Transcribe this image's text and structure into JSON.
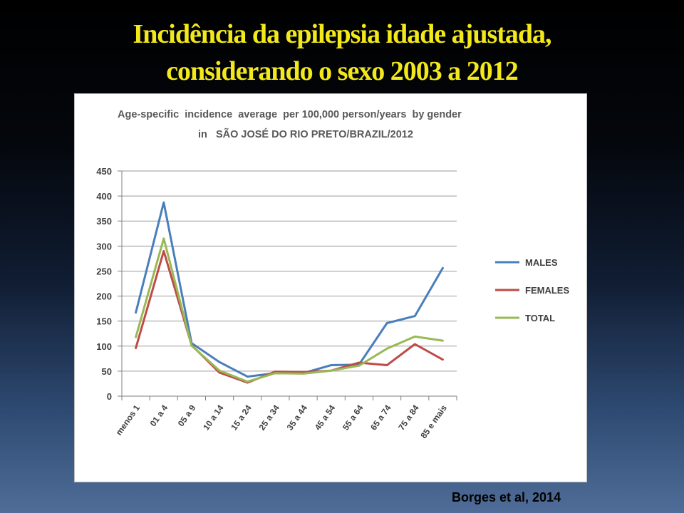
{
  "slide": {
    "title_line1": "Incidência da epilepsia idade ajustada,",
    "title_line2": "considerando o sexo 2003 a 2012",
    "citation": "Borges et al, 2014"
  },
  "chart_data": {
    "type": "line",
    "title_line1": "Age-specific  incidence  average  per 100,000 person/years  by gender",
    "title_line2": "in   SÃO JOSÉ DO RIO PRETO/BRAZIL/2012",
    "categories": [
      "menos 1",
      "01 a 4",
      "05 a 9",
      "10 a 14",
      "15 a 24",
      "25 a 34",
      "35 a 44",
      "45 a 54",
      "55 a 64",
      "65 a 74",
      "75 a 84",
      "85 e mais"
    ],
    "ylim": [
      0,
      450
    ],
    "yticks": [
      0,
      50,
      100,
      150,
      200,
      250,
      300,
      350,
      400,
      450
    ],
    "grid": true,
    "legend_position": "right",
    "series": [
      {
        "name": "MALES",
        "color": "#4a7ebb",
        "values": [
          167,
          387,
          106,
          68,
          39,
          46,
          46,
          62,
          63,
          146,
          160,
          256
        ]
      },
      {
        "name": "FEMALES",
        "color": "#be4b48",
        "values": [
          96,
          290,
          102,
          47,
          27,
          49,
          48,
          51,
          67,
          62,
          104,
          73
        ]
      },
      {
        "name": "TOTAL",
        "color": "#98b954",
        "values": [
          118,
          315,
          101,
          51,
          29,
          46,
          45,
          51,
          61,
          95,
          119,
          111
        ]
      }
    ]
  }
}
